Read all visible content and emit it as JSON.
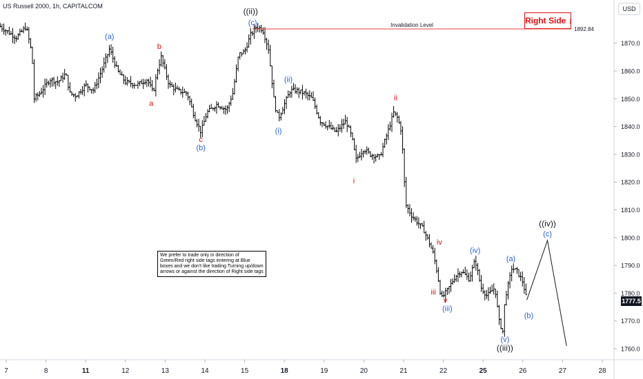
{
  "header": {
    "title": "US Russell 2000, 1h, CAPITALCOM"
  },
  "currency_button": "USD",
  "right_side_tag": "Right Side ↓",
  "note_text": "We prefer to trade only in direction of Green/Red right side tags entering at Blue boxes and we don't like trading Turning up/down arrows or against the direction of Right side tags",
  "current_price": "1777.5",
  "colors": {
    "blue_label": "#2a62d4",
    "red_label": "#e01010",
    "black_label": "#131722",
    "invalidation_line": "#e34040",
    "bars": "#000000"
  },
  "chart_data": {
    "type": "ohlc-bars",
    "title": "US Russell 2000, 1h, CAPITALCOM",
    "ylim": [
      1756,
      1880
    ],
    "y_ticks": [
      1760,
      1770,
      1780,
      1790,
      1800,
      1810,
      1820,
      1830,
      1840,
      1850,
      1860,
      1870
    ],
    "x_ticks": [
      {
        "label": "7",
        "pos": 0.0,
        "bold": false
      },
      {
        "label": "8",
        "pos": 1.0,
        "bold": false
      },
      {
        "label": "11",
        "pos": 2.0,
        "bold": true
      },
      {
        "label": "12",
        "pos": 3.0,
        "bold": false
      },
      {
        "label": "13",
        "pos": 4.0,
        "bold": false
      },
      {
        "label": "14",
        "pos": 5.0,
        "bold": false
      },
      {
        "label": "15",
        "pos": 6.0,
        "bold": false
      },
      {
        "label": "18",
        "pos": 7.0,
        "bold": true
      },
      {
        "label": "19",
        "pos": 8.0,
        "bold": false
      },
      {
        "label": "20",
        "pos": 9.0,
        "bold": false
      },
      {
        "label": "21",
        "pos": 10.0,
        "bold": false
      },
      {
        "label": "22",
        "pos": 11.0,
        "bold": false
      },
      {
        "label": "25",
        "pos": 12.0,
        "bold": true
      },
      {
        "label": "26",
        "pos": 13.0,
        "bold": false
      },
      {
        "label": "27",
        "pos": 14.0,
        "bold": false
      },
      {
        "label": "28",
        "pos": 15.0,
        "bold": false
      }
    ],
    "invalidation": {
      "label": "Invalidation Level",
      "value": 1892.84,
      "value_label": "1892.84"
    },
    "price_anchors": [
      [
        -0.15,
        1876
      ],
      [
        0.25,
        1872
      ],
      [
        0.5,
        1876
      ],
      [
        0.65,
        1866
      ],
      [
        0.7,
        1850
      ],
      [
        0.85,
        1852
      ],
      [
        1.1,
        1857
      ],
      [
        1.3,
        1856
      ],
      [
        1.5,
        1859
      ],
      [
        1.6,
        1852
      ],
      [
        1.75,
        1851
      ],
      [
        2.0,
        1855
      ],
      [
        2.2,
        1853
      ],
      [
        2.45,
        1862
      ],
      [
        2.6,
        1868
      ],
      [
        2.8,
        1860
      ],
      [
        3.0,
        1856
      ],
      [
        3.3,
        1855
      ],
      [
        3.55,
        1857
      ],
      [
        3.7,
        1852
      ],
      [
        3.8,
        1860
      ],
      [
        3.9,
        1865
      ],
      [
        4.1,
        1855
      ],
      [
        4.3,
        1853
      ],
      [
        4.55,
        1852
      ],
      [
        4.75,
        1843
      ],
      [
        4.9,
        1838
      ],
      [
        5.05,
        1845
      ],
      [
        5.3,
        1848
      ],
      [
        5.55,
        1846
      ],
      [
        5.7,
        1852
      ],
      [
        5.85,
        1866
      ],
      [
        6.0,
        1867
      ],
      [
        6.15,
        1873
      ],
      [
        6.3,
        1876
      ],
      [
        6.45,
        1875
      ],
      [
        6.6,
        1868
      ],
      [
        6.75,
        1848
      ],
      [
        6.85,
        1843
      ],
      [
        7.0,
        1848
      ],
      [
        7.15,
        1853
      ],
      [
        7.3,
        1853
      ],
      [
        7.5,
        1852
      ],
      [
        7.7,
        1850
      ],
      [
        7.9,
        1842
      ],
      [
        8.1,
        1840
      ],
      [
        8.3,
        1838
      ],
      [
        8.55,
        1842
      ],
      [
        8.7,
        1836
      ],
      [
        8.8,
        1828
      ],
      [
        9.0,
        1832
      ],
      [
        9.15,
        1830
      ],
      [
        9.4,
        1829
      ],
      [
        9.6,
        1838
      ],
      [
        9.75,
        1845
      ],
      [
        9.85,
        1843
      ],
      [
        9.95,
        1838
      ],
      [
        10.05,
        1812
      ],
      [
        10.2,
        1808
      ],
      [
        10.5,
        1803
      ],
      [
        10.65,
        1798
      ],
      [
        10.75,
        1794
      ],
      [
        10.85,
        1787
      ],
      [
        10.95,
        1778
      ],
      [
        11.1,
        1781
      ],
      [
        11.3,
        1786
      ],
      [
        11.45,
        1788
      ],
      [
        11.65,
        1785
      ],
      [
        11.8,
        1792
      ],
      [
        11.95,
        1782
      ],
      [
        12.1,
        1779
      ],
      [
        12.3,
        1782
      ],
      [
        12.4,
        1770
      ],
      [
        12.5,
        1766
      ],
      [
        12.55,
        1778
      ],
      [
        12.65,
        1784
      ],
      [
        12.72,
        1789
      ],
      [
        12.85,
        1788
      ],
      [
        13.0,
        1784
      ],
      [
        13.1,
        1777.5
      ]
    ],
    "projection": {
      "points": [
        [
          13.1,
          1777.5
        ],
        [
          13.62,
          1799
        ],
        [
          14.1,
          1761
        ]
      ]
    },
    "wave_labels": [
      {
        "text": "((ii))",
        "x": 6.15,
        "y": 1880.5,
        "color": "black_label",
        "size": 12
      },
      {
        "text": "(c)",
        "x": 6.2,
        "y": 1876.5,
        "color": "blue_label",
        "size": 11
      },
      {
        "text": "(a)",
        "x": 2.6,
        "y": 1871.5,
        "color": "blue_label",
        "size": 11
      },
      {
        "text": "b",
        "x": 3.85,
        "y": 1868,
        "color": "red_label",
        "size": 11
      },
      {
        "text": "a",
        "x": 3.65,
        "y": 1847.5,
        "color": "red_label",
        "size": 11
      },
      {
        "text": "c",
        "x": 4.9,
        "y": 1834.5,
        "color": "red_label",
        "size": 11
      },
      {
        "text": "(b)",
        "x": 4.9,
        "y": 1831.5,
        "color": "blue_label",
        "size": 11
      },
      {
        "text": "(ii)",
        "x": 7.1,
        "y": 1856,
        "color": "blue_label",
        "size": 11
      },
      {
        "text": "(i)",
        "x": 6.85,
        "y": 1837.5,
        "color": "blue_label",
        "size": 11
      },
      {
        "text": "ii",
        "x": 9.8,
        "y": 1849.5,
        "color": "red_label",
        "size": 11
      },
      {
        "text": "i",
        "x": 8.75,
        "y": 1819.5,
        "color": "red_label",
        "size": 11
      },
      {
        "text": "iv",
        "x": 10.9,
        "y": 1797.5,
        "color": "red_label",
        "size": 11
      },
      {
        "text": "(iv)",
        "x": 11.8,
        "y": 1794.5,
        "color": "blue_label",
        "size": 11
      },
      {
        "text": "iii",
        "x": 10.75,
        "y": 1779.5,
        "color": "red_label",
        "size": 11
      },
      {
        "text": "v",
        "x": 11.05,
        "y": 1776.5,
        "color": "red_label",
        "size": 11
      },
      {
        "text": "(iii)",
        "x": 11.1,
        "y": 1773.5,
        "color": "blue_label",
        "size": 11
      },
      {
        "text": "(a)",
        "x": 12.7,
        "y": 1791.5,
        "color": "blue_label",
        "size": 11
      },
      {
        "text": "(b)",
        "x": 13.15,
        "y": 1771,
        "color": "blue_label",
        "size": 11
      },
      {
        "text": "((iv))",
        "x": 13.62,
        "y": 1804,
        "color": "black_label",
        "size": 12
      },
      {
        "text": "(c)",
        "x": 13.62,
        "y": 1800.5,
        "color": "blue_label",
        "size": 11
      },
      {
        "text": "(v)",
        "x": 12.55,
        "y": 1762.5,
        "color": "blue_label",
        "size": 11
      },
      {
        "text": "((iii))",
        "x": 12.55,
        "y": 1759.3,
        "color": "black_label",
        "size": 12
      }
    ]
  }
}
